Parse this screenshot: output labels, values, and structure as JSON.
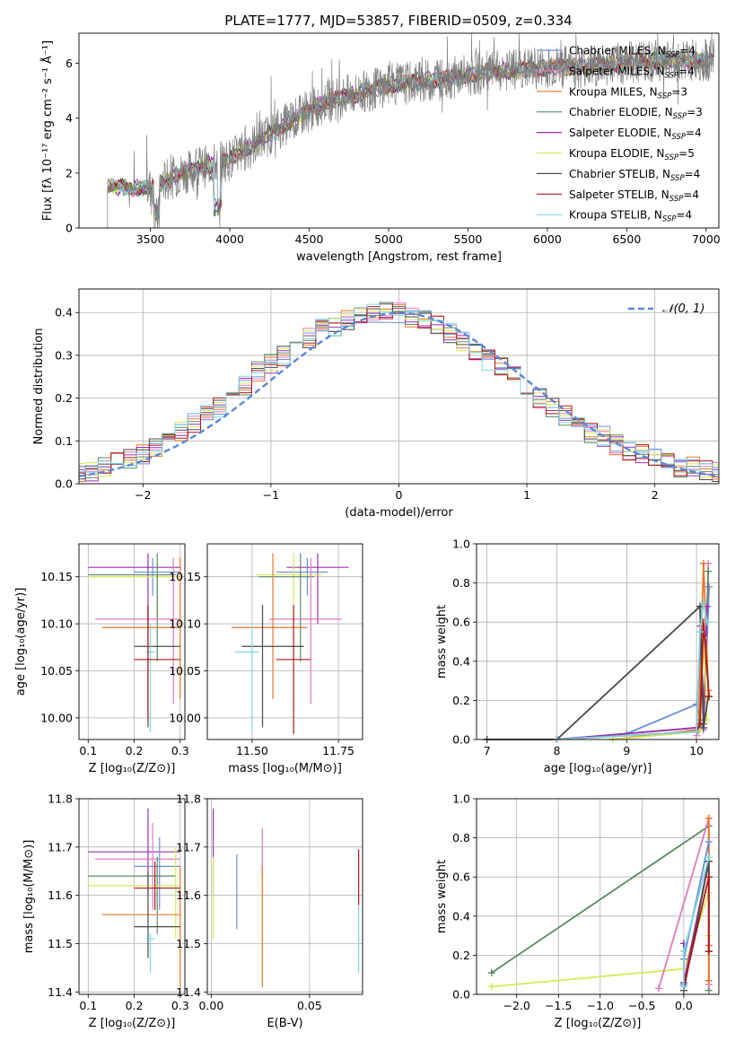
{
  "chart_data": [
    {
      "type": "line",
      "title": "PLATE=1777, MJD=53857, FIBERID=0509, z=0.334",
      "xlabel": "wavelength [Angstrom, rest frame]",
      "ylabel": "Flux [fλ 10⁻¹⁷ erg cm⁻² s⁻¹ Å⁻¹]",
      "xlim": [
        3050,
        7080
      ],
      "ylim": [
        0,
        7.1
      ],
      "xticks": [
        3500,
        4000,
        4500,
        5000,
        5500,
        6000,
        6500,
        7000
      ],
      "yticks": [
        0,
        2,
        4,
        6
      ],
      "legend_position": "top-right",
      "series": [
        {
          "name": "Chabrier MILES, N_SSP=4",
          "color": "#6a8fd8"
        },
        {
          "name": "Salpeter MILES, N_SSP=4",
          "color": "#e07bbd"
        },
        {
          "name": "Kroupa MILES, N_SSP=3",
          "color": "#e9762b"
        },
        {
          "name": "Chabrier ELODIE, N_SSP=3",
          "color": "#5c8a66"
        },
        {
          "name": "Salpeter ELODIE, N_SSP=4",
          "color": "#9b30b0"
        },
        {
          "name": "Kroupa ELODIE, N_SSP=5",
          "color": "#d6e85a"
        },
        {
          "name": "Chabrier STELIB, N_SSP=4",
          "color": "#4a4a4a"
        },
        {
          "name": "Salpeter STELIB, N_SSP=4",
          "color": "#b01818"
        },
        {
          "name": "Kroupa STELIB, N_SSP=4",
          "color": "#7fd6e0"
        }
      ],
      "data_color": "#808080",
      "continuum": {
        "x": [
          3230,
          3500,
          3700,
          4000,
          4300,
          4600,
          5000,
          5300,
          5600,
          6000,
          6300,
          6600,
          6900,
          7050
        ],
        "y": [
          1.5,
          1.45,
          2.0,
          2.5,
          3.6,
          4.6,
          5.2,
          5.4,
          5.65,
          5.85,
          5.9,
          6.1,
          6.1,
          6.1
        ]
      }
    },
    {
      "type": "line",
      "xlabel": "(data-model)/error",
      "ylabel": "Normed distribution",
      "xlim": [
        -2.5,
        2.5
      ],
      "ylim": [
        0,
        0.455
      ],
      "xticks": [
        -2,
        -1,
        0,
        1,
        2
      ],
      "yticks": [
        0.0,
        0.1,
        0.2,
        0.3,
        0.4
      ],
      "grid": true,
      "legend": "𝒩(0, 1)",
      "legend_position": "top-right",
      "gauss_color": "#5b86d9",
      "bin_edges_start": -2.55,
      "bin_width": 0.1,
      "histogram_envelope": [
        0.03,
        0.03,
        0.04,
        0.05,
        0.06,
        0.07,
        0.08,
        0.1,
        0.12,
        0.14,
        0.16,
        0.18,
        0.21,
        0.23,
        0.26,
        0.28,
        0.3,
        0.32,
        0.34,
        0.36,
        0.37,
        0.38,
        0.39,
        0.4,
        0.4,
        0.4,
        0.39,
        0.38,
        0.37,
        0.35,
        0.33,
        0.31,
        0.29,
        0.27,
        0.25,
        0.22,
        0.2,
        0.18,
        0.16,
        0.14,
        0.12,
        0.11,
        0.09,
        0.08,
        0.07,
        0.06,
        0.05,
        0.04,
        0.04,
        0.03,
        0.03
      ]
    },
    {
      "type": "scatter",
      "xlabel": "Z [log₁₀(Z/Z⊙)]",
      "ylabel": "age  [log₁₀(age/yr)]",
      "xlim": [
        0.08,
        0.31
      ],
      "ylim": [
        9.977,
        10.185
      ],
      "xticks": [
        0.1,
        0.2,
        0.3
      ],
      "yticks": [
        10.0,
        10.05,
        10.1,
        10.15
      ],
      "points": [
        {
          "x": 0.23,
          "y": 10.16,
          "xlo": 0.1,
          "xhi": 0.3,
          "ylo": 10.1,
          "yhi": 10.175,
          "c": "#9b30b0"
        },
        {
          "x": 0.24,
          "y": 10.155,
          "xlo": 0.2,
          "xhi": 0.3,
          "ylo": 10.13,
          "yhi": 10.17,
          "c": "#6a8fd8"
        },
        {
          "x": 0.25,
          "y": 10.15,
          "xlo": 0.1,
          "xhi": 0.3,
          "ylo": 10.1,
          "yhi": 10.175,
          "c": "#d6e85a"
        },
        {
          "x": 0.25,
          "y": 10.152,
          "xlo": 0.1,
          "xhi": 0.29,
          "ylo": 10.06,
          "yhi": 10.175,
          "c": "#5c8a66"
        },
        {
          "x": 0.285,
          "y": 10.105,
          "xlo": 0.115,
          "xhi": 0.3,
          "ylo": 10.015,
          "yhi": 10.17,
          "c": "#e07bbd"
        },
        {
          "x": 0.3,
          "y": 10.096,
          "xlo": 0.13,
          "xhi": 0.3,
          "ylo": 10.02,
          "yhi": 10.17,
          "c": "#e9762b"
        },
        {
          "x": 0.23,
          "y": 10.076,
          "xlo": 0.2,
          "xhi": 0.3,
          "ylo": 9.99,
          "yhi": 10.12,
          "c": "#4a4a4a"
        },
        {
          "x": 0.235,
          "y": 10.07,
          "xlo": 0.225,
          "xhi": 0.245,
          "ylo": 9.985,
          "yhi": 10.1,
          "c": "#7fd6e0"
        },
        {
          "x": 0.23,
          "y": 10.062,
          "xlo": 0.2,
          "xhi": 0.3,
          "ylo": 10.0,
          "yhi": 10.12,
          "c": "#b01818"
        }
      ]
    },
    {
      "type": "scatter",
      "xlabel": "mass [log₁₀(M/M⊙)]",
      "xlim": [
        11.37,
        11.82
      ],
      "ylim": [
        9.977,
        10.185
      ],
      "xticks": [
        11.5,
        11.75
      ],
      "yticks": [
        10.0,
        10.05,
        10.1,
        10.15
      ],
      "points": [
        {
          "x": 11.69,
          "y": 10.16,
          "xlo": 11.6,
          "xhi": 11.78,
          "ylo": 10.1,
          "yhi": 10.175,
          "c": "#9b30b0"
        },
        {
          "x": 11.66,
          "y": 10.155,
          "xlo": 11.57,
          "xhi": 11.72,
          "ylo": 10.13,
          "yhi": 10.17,
          "c": "#6a8fd8"
        },
        {
          "x": 11.62,
          "y": 10.152,
          "xlo": 11.51,
          "xhi": 11.7,
          "ylo": 10.1,
          "yhi": 10.175,
          "c": "#d6e85a"
        },
        {
          "x": 11.64,
          "y": 10.15,
          "xlo": 11.52,
          "xhi": 11.68,
          "ylo": 10.06,
          "yhi": 10.175,
          "c": "#5c8a66"
        },
        {
          "x": 11.67,
          "y": 10.105,
          "xlo": 11.55,
          "xhi": 11.76,
          "ylo": 10.015,
          "yhi": 10.17,
          "c": "#e07bbd"
        },
        {
          "x": 11.56,
          "y": 10.096,
          "xlo": 11.44,
          "xhi": 11.66,
          "ylo": 10.02,
          "yhi": 10.175,
          "c": "#e9762b"
        },
        {
          "x": 11.53,
          "y": 10.076,
          "xlo": 11.47,
          "xhi": 11.65,
          "ylo": 9.99,
          "yhi": 10.12,
          "c": "#4a4a4a"
        },
        {
          "x": 11.5,
          "y": 10.07,
          "xlo": 11.45,
          "xhi": 11.52,
          "ylo": 9.985,
          "yhi": 10.1,
          "c": "#7fd6e0"
        },
        {
          "x": 11.62,
          "y": 10.062,
          "xlo": 11.57,
          "xhi": 11.67,
          "ylo": 9.983,
          "yhi": 10.12,
          "c": "#b01818"
        }
      ]
    },
    {
      "type": "line",
      "xlabel": "age  [log₁₀(age/yr)]",
      "ylabel": "mass weight",
      "xlim": [
        6.85,
        10.32
      ],
      "ylim": [
        0,
        1.0
      ],
      "xticks": [
        7,
        8,
        9,
        10
      ],
      "yticks": [
        0.0,
        0.2,
        0.4,
        0.6,
        0.8,
        1.0
      ],
      "grid": true,
      "series": [
        {
          "name": "Chabrier MILES",
          "c": "#6a8fd8",
          "x": [
            7,
            8,
            9,
            10,
            10.05,
            10.1,
            10.18
          ],
          "y": [
            0,
            0,
            0.03,
            0.18,
            0.1,
            0.05,
            0.78
          ]
        },
        {
          "name": "Salpeter MILES",
          "c": "#e07bbd",
          "x": [
            10,
            10.05,
            10.1,
            10.17
          ],
          "y": [
            0.02,
            0.05,
            0.05,
            0.9
          ]
        },
        {
          "name": "Kroupa MILES",
          "c": "#e9762b",
          "x": [
            8.8,
            10.03,
            10.1,
            10.17
          ],
          "y": [
            0,
            0.05,
            0.9,
            0.25
          ]
        },
        {
          "name": "Chabrier ELODIE",
          "c": "#5c8a66",
          "x": [
            8,
            10,
            10.1,
            10.17
          ],
          "y": [
            0,
            0.06,
            0.08,
            0.86
          ]
        },
        {
          "name": "Salpeter ELODIE",
          "c": "#9b30b0",
          "x": [
            8,
            10,
            10.06,
            10.1,
            10.15
          ],
          "y": [
            0,
            0.06,
            0.58,
            0.1,
            0.68
          ]
        },
        {
          "name": "Kroupa ELODIE",
          "c": "#d6e85a",
          "x": [
            8.8,
            10,
            10.05,
            10.1,
            10.15
          ],
          "y": [
            0,
            0.04,
            0.05,
            0.52,
            0.1
          ]
        },
        {
          "name": "Chabrier STELIB",
          "c": "#4a4a4a",
          "x": [
            7,
            8,
            10.05,
            10.1,
            10.17
          ],
          "y": [
            0,
            0,
            0.68,
            0.06,
            0.22
          ]
        },
        {
          "name": "Salpeter STELIB",
          "c": "#b01818",
          "x": [
            8,
            10,
            10.05,
            10.1,
            10.18
          ],
          "y": [
            0,
            0.04,
            0.08,
            0.6,
            0.22
          ]
        },
        {
          "name": "Kroupa STELIB",
          "c": "#7fd6e0",
          "x": [
            8,
            10,
            10.05,
            10.1,
            10.15
          ],
          "y": [
            0,
            0.04,
            0.55,
            0.7,
            0.6
          ]
        }
      ]
    },
    {
      "type": "scatter",
      "xlabel": "Z [log₁₀(Z/Z⊙)]",
      "ylabel": "mass [log₁₀(M/M⊙)]",
      "xlim": [
        0.08,
        0.31
      ],
      "ylim": [
        11.395,
        11.8
      ],
      "xticks": [
        0.1,
        0.2,
        0.3
      ],
      "yticks": [
        11.4,
        11.5,
        11.6,
        11.7,
        11.8
      ],
      "points": [
        {
          "x": 0.23,
          "y": 11.69,
          "xlo": 0.1,
          "xhi": 0.3,
          "ylo": 11.6,
          "yhi": 11.78,
          "c": "#9b30b0"
        },
        {
          "x": 0.24,
          "y": 11.675,
          "xlo": 0.115,
          "xhi": 0.3,
          "ylo": 11.57,
          "yhi": 11.75,
          "c": "#e07bbd"
        },
        {
          "x": 0.255,
          "y": 11.66,
          "xlo": 0.2,
          "xhi": 0.3,
          "ylo": 11.57,
          "yhi": 11.72,
          "c": "#6a8fd8"
        },
        {
          "x": 0.25,
          "y": 11.64,
          "xlo": 0.1,
          "xhi": 0.29,
          "ylo": 11.52,
          "yhi": 11.68,
          "c": "#5c8a66"
        },
        {
          "x": 0.29,
          "y": 11.62,
          "xlo": 0.1,
          "xhi": 0.3,
          "ylo": 11.51,
          "yhi": 11.7,
          "c": "#d6e85a"
        },
        {
          "x": 0.245,
          "y": 11.615,
          "xlo": 0.2,
          "xhi": 0.3,
          "ylo": 11.57,
          "yhi": 11.67,
          "c": "#b01818"
        },
        {
          "x": 0.3,
          "y": 11.56,
          "xlo": 0.13,
          "xhi": 0.3,
          "ylo": 11.41,
          "yhi": 11.66,
          "c": "#e9762b"
        },
        {
          "x": 0.23,
          "y": 11.535,
          "xlo": 0.2,
          "xhi": 0.3,
          "ylo": 11.47,
          "yhi": 11.65,
          "c": "#4a4a4a"
        },
        {
          "x": 0.235,
          "y": 11.51,
          "xlo": 0.225,
          "xhi": 0.245,
          "ylo": 11.44,
          "yhi": 11.52,
          "c": "#7fd6e0"
        }
      ]
    },
    {
      "type": "scatter",
      "xlabel": "E(B-V)",
      "xlim": [
        -0.002,
        0.077
      ],
      "ylim": [
        11.395,
        11.8
      ],
      "xticks": [
        0.0,
        0.05
      ],
      "yticks": [
        11.4,
        11.5,
        11.6,
        11.7,
        11.8
      ],
      "points": [
        {
          "x": 0.001,
          "y": 11.69,
          "ylo": 11.6,
          "yhi": 11.78,
          "c": "#9b30b0"
        },
        {
          "x": 0.001,
          "y": 11.62,
          "ylo": 11.51,
          "yhi": 11.68,
          "c": "#d6e85a"
        },
        {
          "x": 0.013,
          "y": 11.62,
          "ylo": 11.53,
          "yhi": 11.685,
          "c": "#6a8fd8"
        },
        {
          "x": 0.026,
          "y": 11.69,
          "ylo": 11.64,
          "yhi": 11.74,
          "c": "#e07bbd"
        },
        {
          "x": 0.026,
          "y": 11.56,
          "ylo": 11.41,
          "yhi": 11.66,
          "c": "#e9762b"
        },
        {
          "x": 0.075,
          "y": 11.64,
          "ylo": 11.58,
          "yhi": 11.695,
          "c": "#b01818"
        },
        {
          "x": 0.075,
          "y": 11.51,
          "ylo": 11.44,
          "yhi": 11.58,
          "c": "#7fd6e0"
        }
      ]
    },
    {
      "type": "line",
      "xlabel": "Z [log₁₀(Z/Z⊙)]",
      "ylabel": "mass weight",
      "xlim": [
        -2.48,
        0.42
      ],
      "ylim": [
        0,
        1.0
      ],
      "xticks": [
        -2.0,
        -1.5,
        -1.0,
        -0.5,
        0.0
      ],
      "yticks": [
        0.0,
        0.2,
        0.4,
        0.6,
        0.8,
        1.0
      ],
      "grid": true,
      "series": [
        {
          "name": "Chabrier ELODIE",
          "c": "#5c8a66",
          "x": [
            -2.3,
            0.3,
            0.3
          ],
          "y": [
            0.11,
            0.86,
            0.02
          ]
        },
        {
          "name": "Kroupa ELODIE",
          "c": "#d6e85a",
          "x": [
            -2.3,
            0.0,
            0.3,
            0.3
          ],
          "y": [
            0.04,
            0.13,
            0.52,
            0.3
          ]
        },
        {
          "name": "Salpeter MILES",
          "c": "#e07bbd",
          "x": [
            -0.3,
            0.3,
            0.3
          ],
          "y": [
            0.03,
            0.9,
            0.05
          ]
        },
        {
          "name": "Kroupa MILES",
          "c": "#e9762b",
          "x": [
            0.3,
            0.3,
            0.3
          ],
          "y": [
            0.9,
            0.25,
            0.07
          ]
        },
        {
          "name": "Chabrier MILES",
          "c": "#6a8fd8",
          "x": [
            0.0,
            0.0,
            0.3
          ],
          "y": [
            0.05,
            0.18,
            0.78
          ]
        },
        {
          "name": "Salpeter ELODIE",
          "c": "#9b30b0",
          "x": [
            0.0,
            0.0,
            0.3
          ],
          "y": [
            0.26,
            0.06,
            0.68
          ]
        },
        {
          "name": "Chabrier STELIB",
          "c": "#4a4a4a",
          "x": [
            0.0,
            0.3,
            0.3
          ],
          "y": [
            0.02,
            0.68,
            0.22
          ]
        },
        {
          "name": "Salpeter STELIB",
          "c": "#b01818",
          "x": [
            0.0,
            0.3,
            0.3
          ],
          "y": [
            0.04,
            0.6,
            0.22
          ]
        },
        {
          "name": "Kroupa STELIB",
          "c": "#7fd6e0",
          "x": [
            0.0,
            0.0,
            0.3
          ],
          "y": [
            0.04,
            0.22,
            0.7
          ]
        }
      ]
    }
  ]
}
